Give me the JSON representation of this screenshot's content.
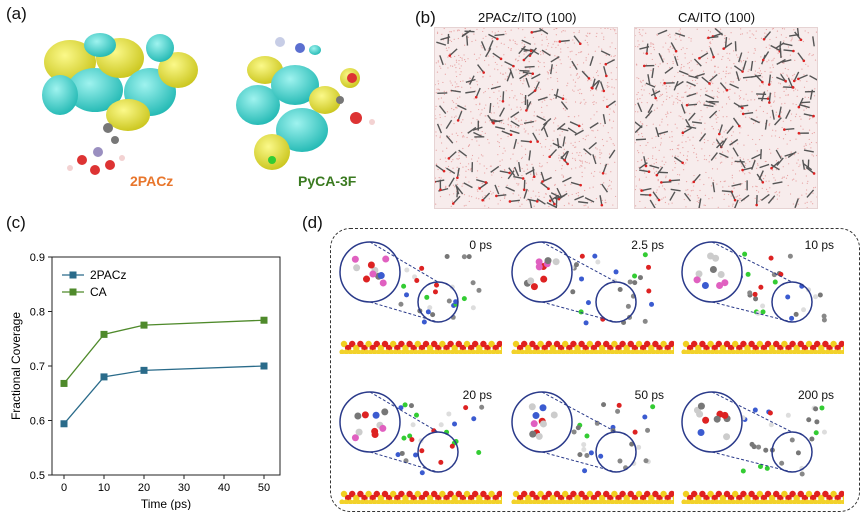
{
  "panels": {
    "a_label": "(a)",
    "b_label": "(b)",
    "c_label": "(c)",
    "d_label": "(d)"
  },
  "panel_a": {
    "molecule_left": "2PACz",
    "molecule_right": "PyCA-3F",
    "colors": {
      "lobe_yellow": "#e6e22a",
      "lobe_cyan": "#2fd4cf",
      "label_orange": "#e8762c",
      "label_green": "#3a7a20"
    }
  },
  "panel_b": {
    "left_title": "2PACz/ITO (100)",
    "right_title": "CA/ITO (100)"
  },
  "panel_d": {
    "snapshots": [
      "0 ps",
      "2.5 ps",
      "10 ps",
      "20 ps",
      "50 ps",
      "200 ps"
    ]
  },
  "chart_data": {
    "type": "line",
    "x": [
      0,
      10,
      20,
      50
    ],
    "series": [
      {
        "name": "2PACz",
        "values": [
          0.594,
          0.68,
          0.692,
          0.7
        ],
        "color": "#2a6b8a",
        "marker": "square"
      },
      {
        "name": "CA",
        "values": [
          0.668,
          0.758,
          0.775,
          0.784
        ],
        "color": "#4f8a2b",
        "marker": "square"
      }
    ],
    "xlabel": "Time (ps)",
    "ylabel": "Fractional Coverage",
    "xlim": [
      -3,
      54
    ],
    "ylim": [
      0.5,
      0.9
    ],
    "xticks": [
      0,
      10,
      20,
      30,
      40,
      50
    ],
    "yticks": [
      0.5,
      0.6,
      0.7,
      0.8,
      0.9
    ],
    "legend_position": "top-left",
    "grid": false
  }
}
